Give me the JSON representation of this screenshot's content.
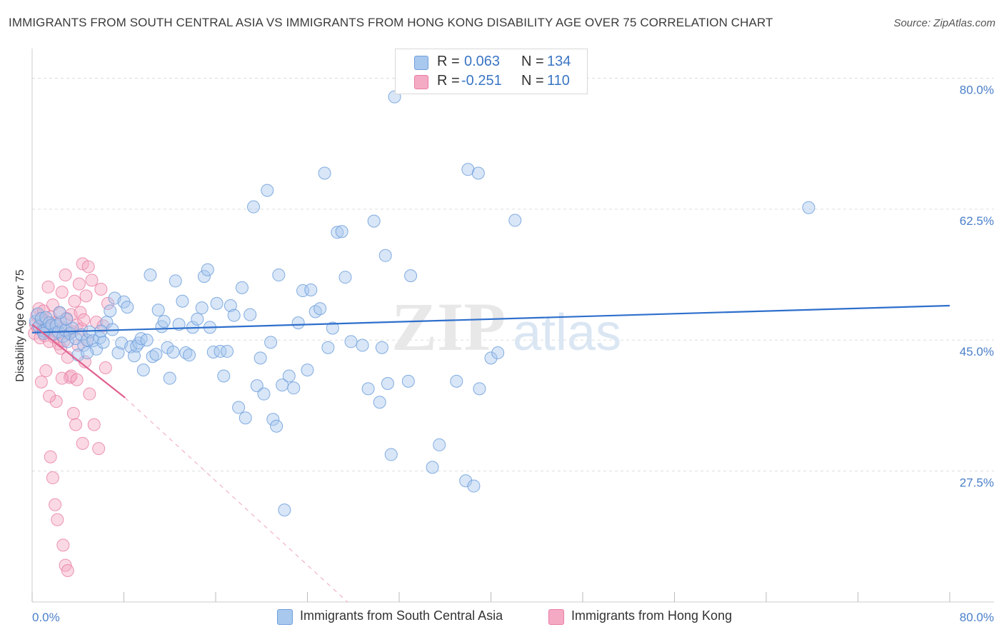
{
  "title": "IMMIGRANTS FROM SOUTH CENTRAL ASIA VS IMMIGRANTS FROM HONG KONG DISABILITY AGE OVER 75 CORRELATION CHART",
  "source": "Source: ZipAtlas.com",
  "legend": {
    "r_label": "R =",
    "n_label": "N =",
    "series": [
      {
        "r": "0.063",
        "n": "134"
      },
      {
        "r": "-0.251",
        "n": "110"
      }
    ]
  },
  "bottom_legend": [
    "Immigrants from South Central Asia",
    "Immigrants from Hong Kong"
  ],
  "watermark": {
    "zip": "ZIP",
    "atlas": "atlas"
  },
  "colors": {
    "blue_fill": "#a9c8ee",
    "blue_stroke": "#6f9fdc",
    "blue_line": "#2e6fcc",
    "pink_fill": "#f5aac4",
    "pink_stroke": "#e87ca3",
    "pink_line": "#e06090",
    "grid": "#dddddd",
    "tick_label": "#4a7fc9"
  },
  "chart_data": {
    "type": "scatter",
    "title": "IMMIGRANTS FROM SOUTH CENTRAL ASIA VS IMMIGRANTS FROM HONG KONG DISABILITY AGE OVER 75 CORRELATION CHART",
    "xlabel": "",
    "ylabel": "Disability Age Over 75",
    "xlim": [
      0,
      80
    ],
    "ylim": [
      10,
      83
    ],
    "x_tick_labels": [
      "0.0%",
      "80.0%"
    ],
    "y_ticks": [
      27.5,
      45.0,
      62.5,
      80.0
    ],
    "y_tick_labels": [
      "27.5%",
      "45.0%",
      "62.5%",
      "80.0%"
    ],
    "series": [
      {
        "name": "Immigrants from South Central Asia",
        "r": 0.063,
        "n": 134,
        "trend": {
          "x": [
            0,
            80
          ],
          "y": [
            46.0,
            49.6
          ]
        },
        "points": [
          [
            0.3,
            47.5
          ],
          [
            0.5,
            48.5
          ],
          [
            0.6,
            46.8
          ],
          [
            0.8,
            47.9
          ],
          [
            1.0,
            46.2
          ],
          [
            1.2,
            48.0
          ],
          [
            1.3,
            46.5
          ],
          [
            1.5,
            47.3
          ],
          [
            1.7,
            47.0
          ],
          [
            1.9,
            45.8
          ],
          [
            2.1,
            46.9
          ],
          [
            2.3,
            46.1
          ],
          [
            2.5,
            47.4
          ],
          [
            2.7,
            45.5
          ],
          [
            2.9,
            46.3
          ],
          [
            3.1,
            44.8
          ],
          [
            3.3,
            45.9
          ],
          [
            3.5,
            46.6
          ],
          [
            3.8,
            45.2
          ],
          [
            4.0,
            43.0
          ],
          [
            4.3,
            45.7
          ],
          [
            4.5,
            44.3
          ],
          [
            4.8,
            45.0
          ],
          [
            5.0,
            46.1
          ],
          [
            5.3,
            44.9
          ],
          [
            5.6,
            43.8
          ],
          [
            5.9,
            45.3
          ],
          [
            6.2,
            44.7
          ],
          [
            6.5,
            47.4
          ],
          [
            6.8,
            48.9
          ],
          [
            7.0,
            46.4
          ],
          [
            7.2,
            50.6
          ],
          [
            7.5,
            43.3
          ],
          [
            7.8,
            44.6
          ],
          [
            8.0,
            50.1
          ],
          [
            8.3,
            49.4
          ],
          [
            8.6,
            44.1
          ],
          [
            8.9,
            42.9
          ],
          [
            9.1,
            44.2
          ],
          [
            9.3,
            44.6
          ],
          [
            9.5,
            45.2
          ],
          [
            9.7,
            41.0
          ],
          [
            10.0,
            45.0
          ],
          [
            10.3,
            53.7
          ],
          [
            10.5,
            42.8
          ],
          [
            10.8,
            43.1
          ],
          [
            11.0,
            49.0
          ],
          [
            11.3,
            46.8
          ],
          [
            11.5,
            47.5
          ],
          [
            11.8,
            44.0
          ],
          [
            12.0,
            39.9
          ],
          [
            12.3,
            43.4
          ],
          [
            12.5,
            52.9
          ],
          [
            12.8,
            47.1
          ],
          [
            13.1,
            50.2
          ],
          [
            13.4,
            43.3
          ],
          [
            13.7,
            43.0
          ],
          [
            14.0,
            46.7
          ],
          [
            14.4,
            47.8
          ],
          [
            14.8,
            49.3
          ],
          [
            15.0,
            53.5
          ],
          [
            15.3,
            54.4
          ],
          [
            15.5,
            46.7
          ],
          [
            15.8,
            43.4
          ],
          [
            16.1,
            49.9
          ],
          [
            16.4,
            43.5
          ],
          [
            16.7,
            40.2
          ],
          [
            17.0,
            43.5
          ],
          [
            17.3,
            49.6
          ],
          [
            17.6,
            48.3
          ],
          [
            18.0,
            36.0
          ],
          [
            18.3,
            52.0
          ],
          [
            18.6,
            34.6
          ],
          [
            19.0,
            48.4
          ],
          [
            19.3,
            62.8
          ],
          [
            19.6,
            38.9
          ],
          [
            19.9,
            42.6
          ],
          [
            20.2,
            37.8
          ],
          [
            20.5,
            65.0
          ],
          [
            20.8,
            44.7
          ],
          [
            21.0,
            34.4
          ],
          [
            21.3,
            33.5
          ],
          [
            21.5,
            53.7
          ],
          [
            21.8,
            39.0
          ],
          [
            22.0,
            22.3
          ],
          [
            22.4,
            40.2
          ],
          [
            22.8,
            38.6
          ],
          [
            23.2,
            47.3
          ],
          [
            23.6,
            51.6
          ],
          [
            24.0,
            41.0
          ],
          [
            24.3,
            51.7
          ],
          [
            24.7,
            48.8
          ],
          [
            25.1,
            49.2
          ],
          [
            25.5,
            67.3
          ],
          [
            25.8,
            44.0
          ],
          [
            26.2,
            46.6
          ],
          [
            26.6,
            59.4
          ],
          [
            27.0,
            59.5
          ],
          [
            27.3,
            53.4
          ],
          [
            27.8,
            44.8
          ],
          [
            28.8,
            44.3
          ],
          [
            29.3,
            38.5
          ],
          [
            29.8,
            60.9
          ],
          [
            30.3,
            36.7
          ],
          [
            30.5,
            44.0
          ],
          [
            30.8,
            56.3
          ],
          [
            31.0,
            39.2
          ],
          [
            31.3,
            29.7
          ],
          [
            31.6,
            77.5
          ],
          [
            32.8,
            39.5
          ],
          [
            33.0,
            53.6
          ],
          [
            34.9,
            28.0
          ],
          [
            35.5,
            31.0
          ],
          [
            37.0,
            39.5
          ],
          [
            37.8,
            26.2
          ],
          [
            38.0,
            67.8
          ],
          [
            38.5,
            25.5
          ],
          [
            38.9,
            67.3
          ],
          [
            39.0,
            38.5
          ],
          [
            40.0,
            42.6
          ],
          [
            40.6,
            43.3
          ],
          [
            42.1,
            61.0
          ],
          [
            67.7,
            62.7
          ],
          [
            4.8,
            43.3
          ],
          [
            3.0,
            47.8
          ],
          [
            6.0,
            46.2
          ],
          [
            2.4,
            48.7
          ],
          [
            1.0,
            45.9
          ]
        ]
      },
      {
        "name": "Immigrants from Hong Kong",
        "r": -0.251,
        "n": 110,
        "trend": {
          "x": [
            0,
            8.1
          ],
          "y": [
            47.1,
            37.3
          ]
        },
        "trend_dashed": {
          "x": [
            8.1,
            27.5
          ],
          "y": [
            37.3,
            10.0
          ]
        },
        "points": [
          [
            0.2,
            45.9
          ],
          [
            0.3,
            47.1
          ],
          [
            0.4,
            48.3
          ],
          [
            0.5,
            46.6
          ],
          [
            0.6,
            49.2
          ],
          [
            0.7,
            45.3
          ],
          [
            0.8,
            47.8
          ],
          [
            0.9,
            46.4
          ],
          [
            1.0,
            48.9
          ],
          [
            1.1,
            45.6
          ],
          [
            1.2,
            47.5
          ],
          [
            1.3,
            46.2
          ],
          [
            1.4,
            52.1
          ],
          [
            1.5,
            44.8
          ],
          [
            1.6,
            48.1
          ],
          [
            1.7,
            46.9
          ],
          [
            1.8,
            49.7
          ],
          [
            1.9,
            45.4
          ],
          [
            2.0,
            47.3
          ],
          [
            2.1,
            36.8
          ],
          [
            2.2,
            46.0
          ],
          [
            2.3,
            44.5
          ],
          [
            2.4,
            48.6
          ],
          [
            2.5,
            43.9
          ],
          [
            2.6,
            51.4
          ],
          [
            2.7,
            46.7
          ],
          [
            2.8,
            44.9
          ],
          [
            2.9,
            53.7
          ],
          [
            3.0,
            47.9
          ],
          [
            3.1,
            42.7
          ],
          [
            3.2,
            45.8
          ],
          [
            3.3,
            40.0
          ],
          [
            3.4,
            48.4
          ],
          [
            3.5,
            46.1
          ],
          [
            3.6,
            35.2
          ],
          [
            3.7,
            50.2
          ],
          [
            3.8,
            33.7
          ],
          [
            3.9,
            47.0
          ],
          [
            4.0,
            44.3
          ],
          [
            4.1,
            52.5
          ],
          [
            4.2,
            48.7
          ],
          [
            4.3,
            46.5
          ],
          [
            4.4,
            55.2
          ],
          [
            4.5,
            47.7
          ],
          [
            4.6,
            42.1
          ],
          [
            4.7,
            50.9
          ],
          [
            4.8,
            45.0
          ],
          [
            4.9,
            54.8
          ],
          [
            5.0,
            37.8
          ],
          [
            5.2,
            53.0
          ],
          [
            5.4,
            33.7
          ],
          [
            5.6,
            47.4
          ],
          [
            5.8,
            30.5
          ],
          [
            6.0,
            51.8
          ],
          [
            6.2,
            46.9
          ],
          [
            6.4,
            41.3
          ],
          [
            6.6,
            49.9
          ],
          [
            1.6,
            29.4
          ],
          [
            1.8,
            26.6
          ],
          [
            2.0,
            23.0
          ],
          [
            2.2,
            21.0
          ],
          [
            2.7,
            17.6
          ],
          [
            2.9,
            14.9
          ],
          [
            3.1,
            14.2
          ],
          [
            4.4,
            31.2
          ],
          [
            3.4,
            40.2
          ],
          [
            1.2,
            40.9
          ],
          [
            0.8,
            39.4
          ],
          [
            2.6,
            39.9
          ],
          [
            3.9,
            39.7
          ],
          [
            1.5,
            37.5
          ]
        ]
      }
    ]
  }
}
